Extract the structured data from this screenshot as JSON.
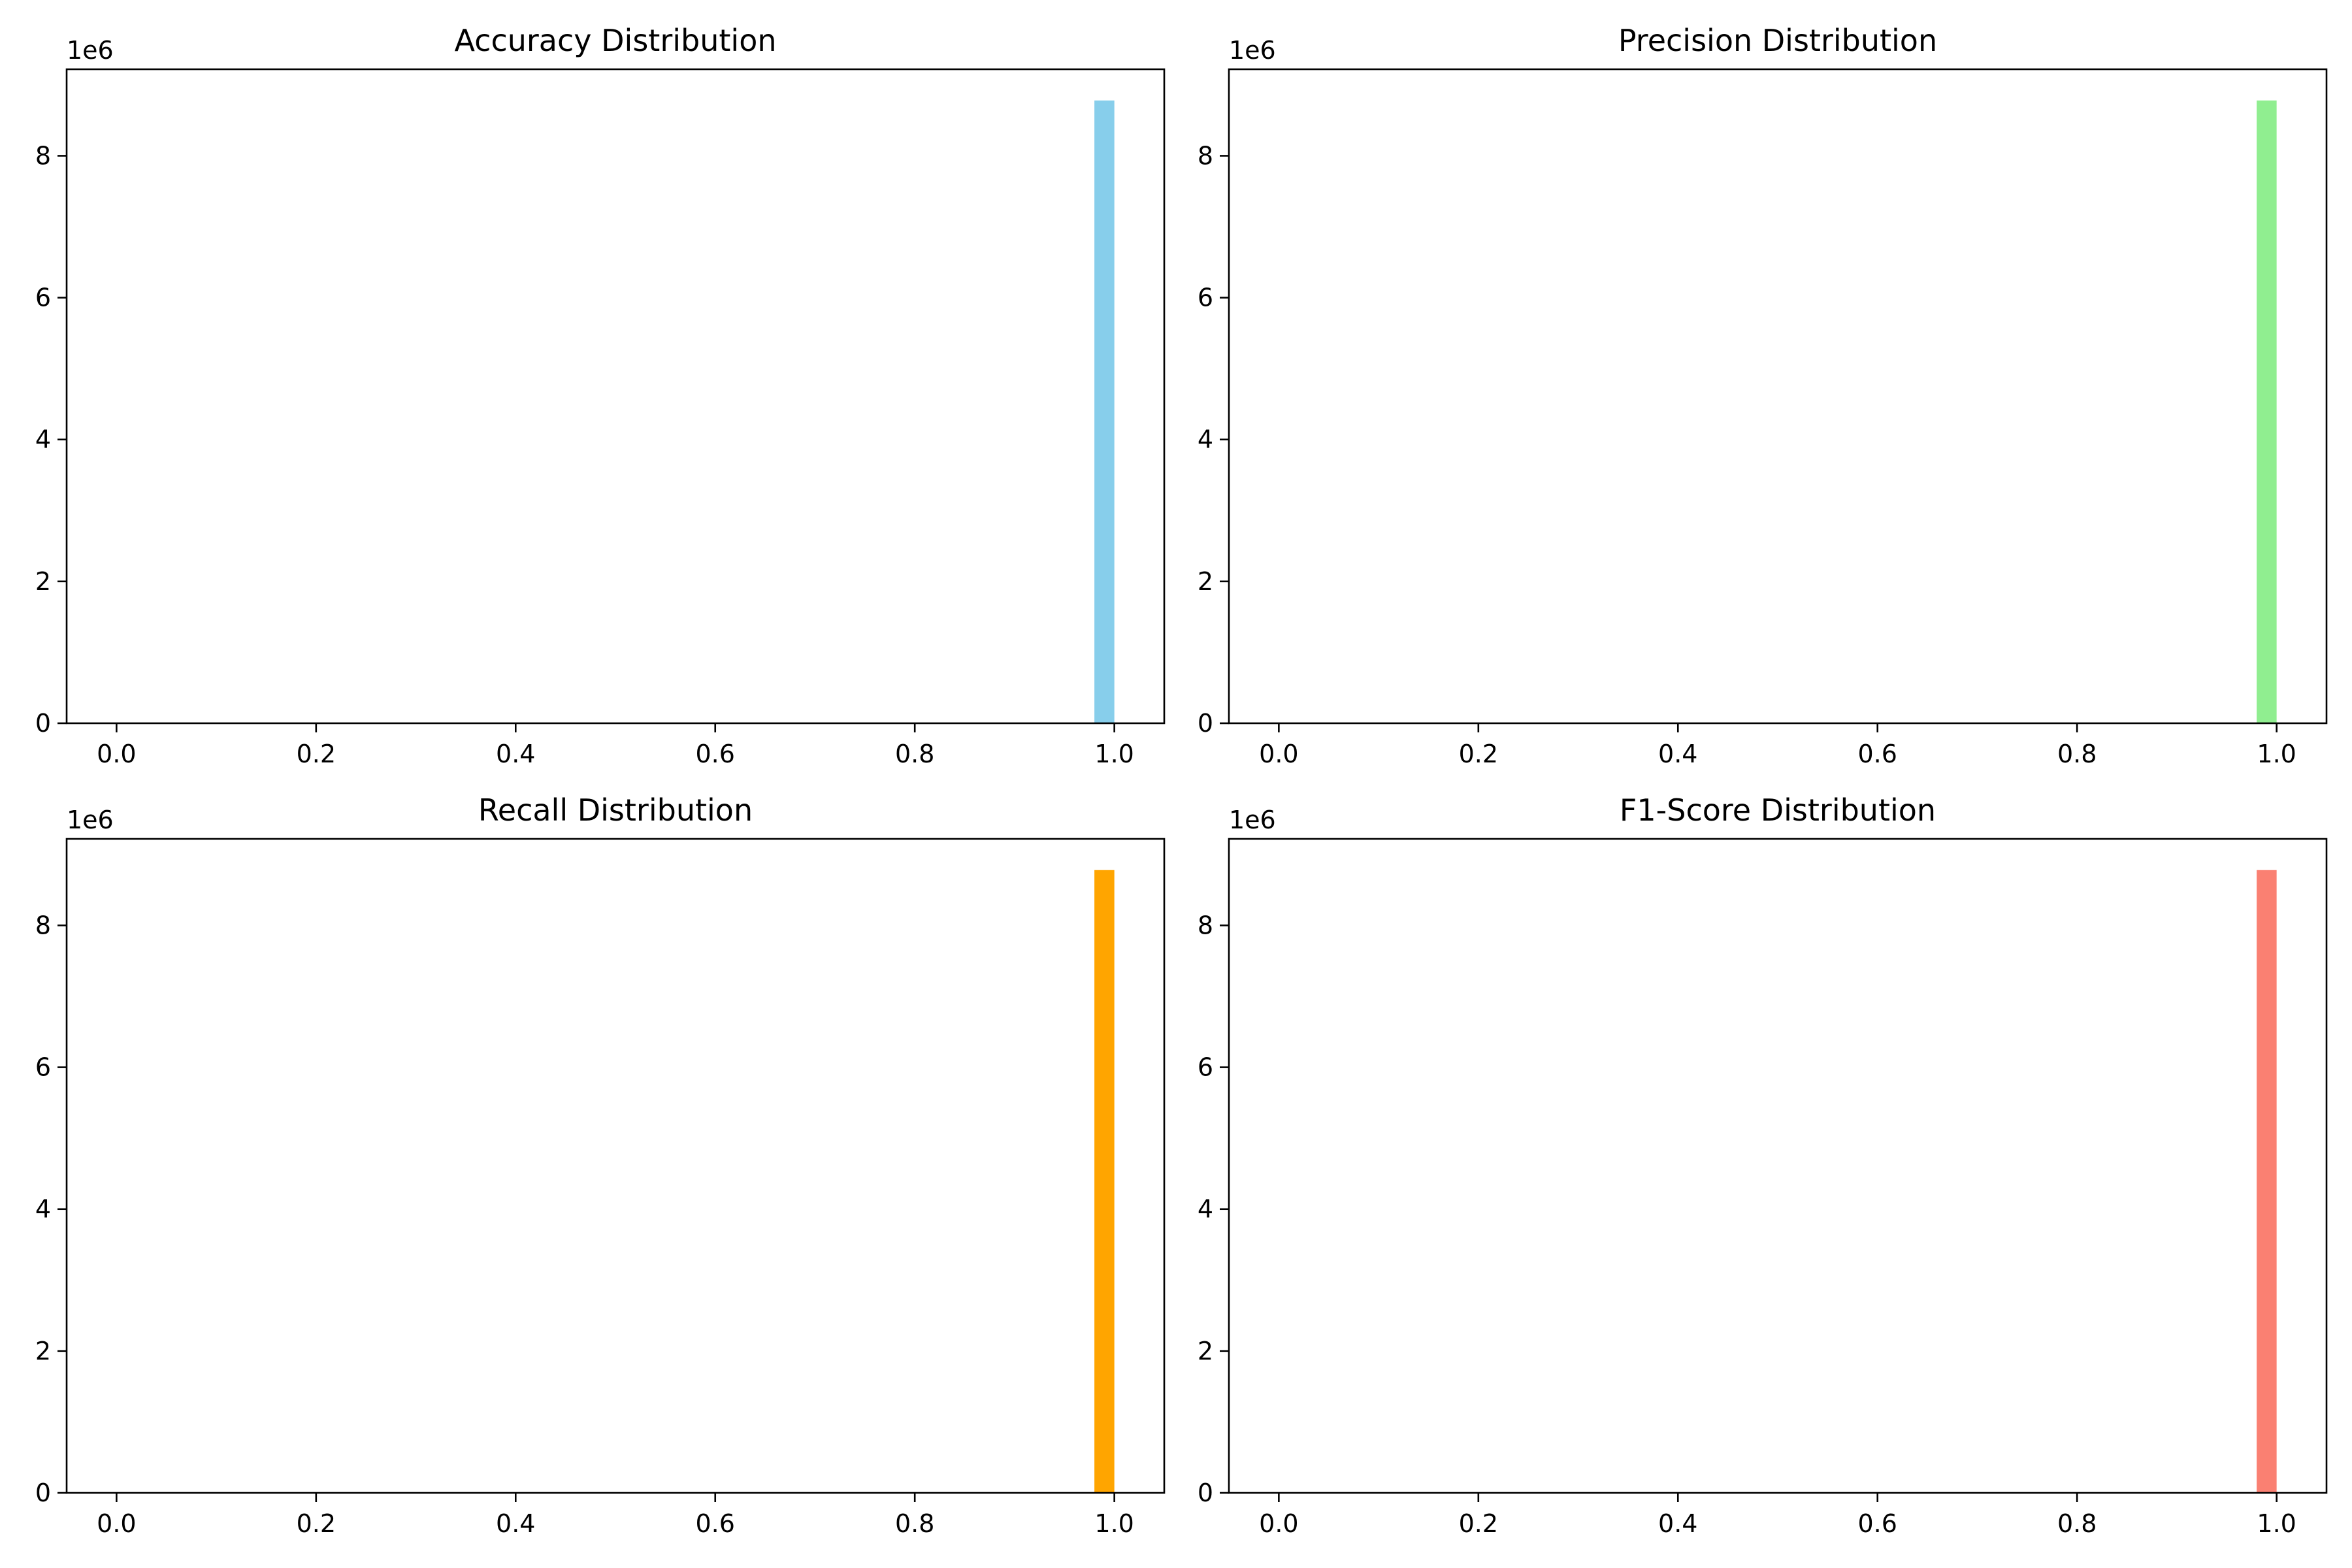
{
  "chart_data": [
    {
      "type": "bar",
      "title": "Accuracy Distribution",
      "color": "#87CEEB",
      "y_offset_label": "1e6",
      "xlim": [
        -0.05,
        1.05
      ],
      "ylim": [
        0,
        9.22
      ],
      "x_ticks": [
        0.0,
        0.2,
        0.4,
        0.6,
        0.8,
        1.0
      ],
      "x_tick_labels": [
        "0.0",
        "0.2",
        "0.4",
        "0.6",
        "0.8",
        "1.0"
      ],
      "y_ticks": [
        0,
        2,
        4,
        6,
        8
      ],
      "y_tick_labels": [
        "0",
        "2",
        "4",
        "6",
        "8"
      ],
      "bars": [
        {
          "x_start": 0.98,
          "x_end": 1.0,
          "value": 8.78
        }
      ]
    },
    {
      "type": "bar",
      "title": "Precision Distribution",
      "color": "#90EE90",
      "y_offset_label": "1e6",
      "xlim": [
        -0.05,
        1.05
      ],
      "ylim": [
        0,
        9.22
      ],
      "x_ticks": [
        0.0,
        0.2,
        0.4,
        0.6,
        0.8,
        1.0
      ],
      "x_tick_labels": [
        "0.0",
        "0.2",
        "0.4",
        "0.6",
        "0.8",
        "1.0"
      ],
      "y_ticks": [
        0,
        2,
        4,
        6,
        8
      ],
      "y_tick_labels": [
        "0",
        "2",
        "4",
        "6",
        "8"
      ],
      "bars": [
        {
          "x_start": 0.98,
          "x_end": 1.0,
          "value": 8.78
        }
      ]
    },
    {
      "type": "bar",
      "title": "Recall Distribution",
      "color": "#FFA500",
      "y_offset_label": "1e6",
      "xlim": [
        -0.05,
        1.05
      ],
      "ylim": [
        0,
        9.22
      ],
      "x_ticks": [
        0.0,
        0.2,
        0.4,
        0.6,
        0.8,
        1.0
      ],
      "x_tick_labels": [
        "0.0",
        "0.2",
        "0.4",
        "0.6",
        "0.8",
        "1.0"
      ],
      "y_ticks": [
        0,
        2,
        4,
        6,
        8
      ],
      "y_tick_labels": [
        "0",
        "2",
        "4",
        "6",
        "8"
      ],
      "bars": [
        {
          "x_start": 0.98,
          "x_end": 1.0,
          "value": 8.78
        }
      ]
    },
    {
      "type": "bar",
      "title": "F1-Score Distribution",
      "color": "#FA8072",
      "y_offset_label": "1e6",
      "xlim": [
        -0.05,
        1.05
      ],
      "ylim": [
        0,
        9.22
      ],
      "x_ticks": [
        0.0,
        0.2,
        0.4,
        0.6,
        0.8,
        1.0
      ],
      "x_tick_labels": [
        "0.0",
        "0.2",
        "0.4",
        "0.6",
        "0.8",
        "1.0"
      ],
      "y_ticks": [
        0,
        2,
        4,
        6,
        8
      ],
      "y_tick_labels": [
        "0",
        "2",
        "4",
        "6",
        "8"
      ],
      "bars": [
        {
          "x_start": 0.98,
          "x_end": 1.0,
          "value": 8.78
        }
      ]
    }
  ]
}
